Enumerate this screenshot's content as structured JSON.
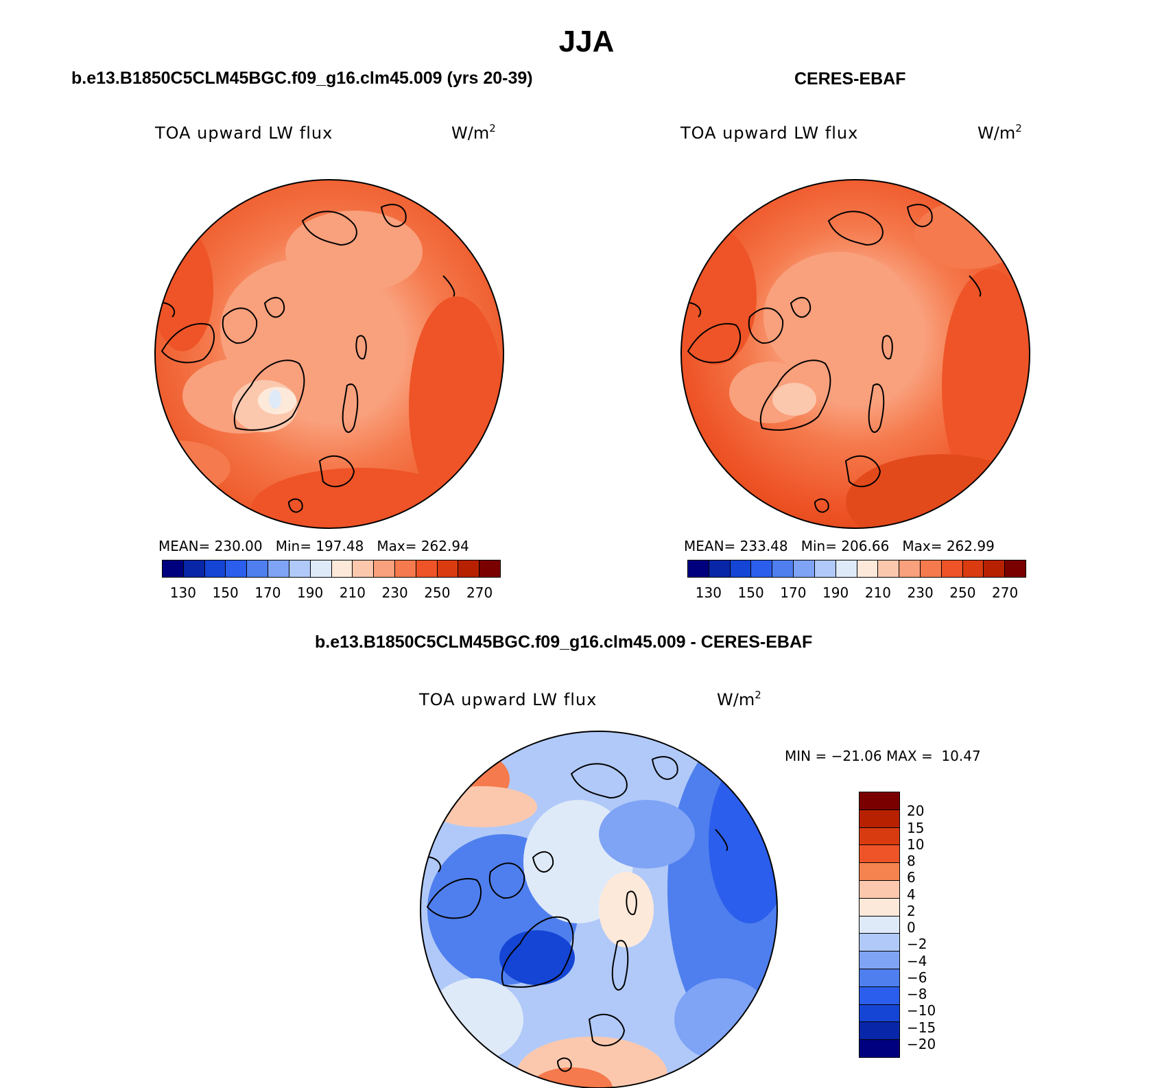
{
  "title": "JJA",
  "colors": {
    "abs_palette": [
      "#00007f",
      "#0826a8",
      "#1545d4",
      "#2b5eec",
      "#4f7fee",
      "#7fa3f5",
      "#b0c9f8",
      "#dfeaf9",
      "#fde9da",
      "#fbc8ae",
      "#f9a07c",
      "#f57a4d",
      "#ee5427",
      "#da3b11",
      "#b72100",
      "#7a0000"
    ],
    "diff_palette": [
      "#7a0000",
      "#b72100",
      "#d93b10",
      "#ee5427",
      "#f5834f",
      "#fbc8ae",
      "#fde9da",
      "#dfeaf9",
      "#b0c9f8",
      "#7fa3f5",
      "#4f7fee",
      "#2b5eec",
      "#1545d4",
      "#0826a8",
      "#00007f"
    ]
  },
  "panels": [
    {
      "title": "b.e13.B1850C5CLM45BGC.f09_g16.clm45.009 (yrs 20-39)",
      "variable": "TOA upward LW flux",
      "unit_base": "W/m",
      "unit_exp": "2",
      "stats": "MEAN= 230.00   Min= 197.48   Max= 262.94",
      "colorbar_ticks": [
        "130",
        "150",
        "170",
        "190",
        "210",
        "230",
        "250",
        "270"
      ]
    },
    {
      "title": "CERES-EBAF",
      "variable": "TOA upward LW flux",
      "unit_base": "W/m",
      "unit_exp": "2",
      "stats": "MEAN= 233.48   Min= 206.66   Max= 262.99",
      "colorbar_ticks": [
        "130",
        "150",
        "170",
        "190",
        "210",
        "230",
        "250",
        "270"
      ]
    }
  ],
  "diff_panel": {
    "title": "b.e13.B1850C5CLM45BGC.f09_g16.clm45.009 - CERES-EBAF",
    "variable": "TOA upward LW flux",
    "unit_base": "W/m",
    "unit_exp": "2",
    "stats": "MIN = −21.06 MAX =  10.47",
    "colorbar_ticks": [
      "20",
      "15",
      "10",
      "8",
      "6",
      "4",
      "2",
      "0",
      "−2",
      "−4",
      "−6",
      "−8",
      "−10",
      "−15",
      "−20"
    ]
  }
}
